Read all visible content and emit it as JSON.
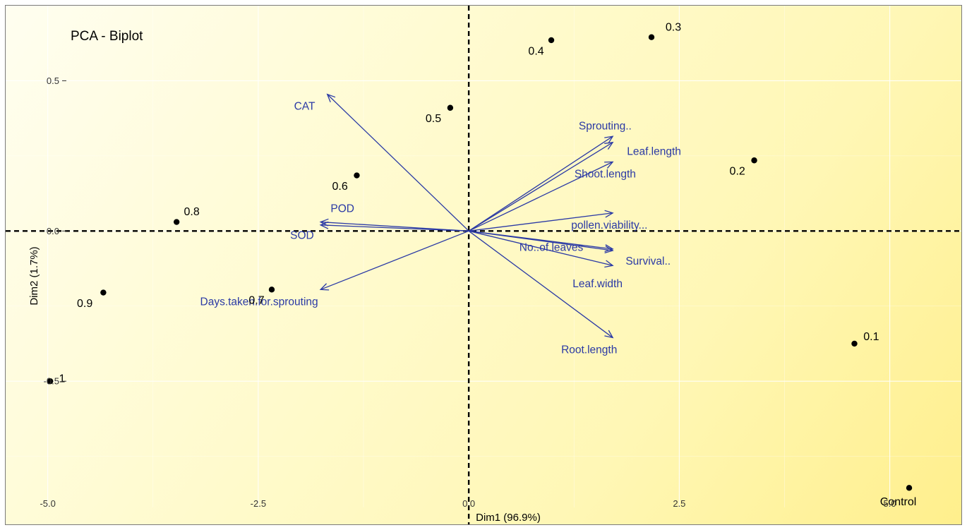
{
  "chart_data": {
    "type": "scatter",
    "title": "PCA - Biplot",
    "xlabel": "Dim1 (96.9%)",
    "ylabel": "Dim2 (1.7%)",
    "xlim": [
      -5.5,
      5.85
    ],
    "ylim": [
      -0.92,
      0.75
    ],
    "x_ticks": [
      {
        "value": -5.0,
        "label": "-5.0"
      },
      {
        "value": -2.5,
        "label": "-2.5"
      },
      {
        "value": 0.0,
        "label": "0.0"
      },
      {
        "value": 2.5,
        "label": "2.5"
      },
      {
        "value": 5.0,
        "label": "5.0"
      }
    ],
    "y_ticks": [
      {
        "value": 0.5,
        "label": "0.5"
      },
      {
        "value": 0.0,
        "label": "0.0"
      },
      {
        "value": -0.5,
        "label": "-0.5"
      }
    ],
    "grid": true,
    "colors": {
      "individuals": "#000000",
      "variables": "#2b3aa5",
      "reference_lines": "#000000"
    },
    "individuals": [
      {
        "label": "0.3",
        "x": 2.17,
        "y": 0.645,
        "label_dx": 0.26,
        "label_dy": 0.035
      },
      {
        "label": "0.4",
        "x": 0.98,
        "y": 0.635,
        "label_dx": -0.18,
        "label_dy": -0.035
      },
      {
        "label": "0.5",
        "x": -0.22,
        "y": 0.41,
        "label_dx": -0.2,
        "label_dy": -0.035
      },
      {
        "label": "0.2",
        "x": 3.39,
        "y": 0.235,
        "label_dx": -0.2,
        "label_dy": -0.035
      },
      {
        "label": "0.6",
        "x": -1.33,
        "y": 0.185,
        "label_dx": -0.2,
        "label_dy": -0.035
      },
      {
        "label": "0.8",
        "x": -3.47,
        "y": 0.03,
        "label_dx": 0.18,
        "label_dy": 0.035
      },
      {
        "label": "0.9",
        "x": -4.34,
        "y": -0.205,
        "label_dx": -0.22,
        "label_dy": -0.035
      },
      {
        "label": "0.7",
        "x": -2.34,
        "y": -0.195,
        "label_dx": -0.18,
        "label_dy": -0.035
      },
      {
        "label": "1",
        "x": -4.97,
        "y": -0.5,
        "label_dx": 0.14,
        "label_dy": 0.01
      },
      {
        "label": "0.1",
        "x": 4.58,
        "y": -0.375,
        "label_dx": 0.2,
        "label_dy": 0.025
      },
      {
        "label": "Control",
        "x": 5.23,
        "y": -0.855,
        "label_dx": -0.13,
        "label_dy": -0.045
      }
    ],
    "variables": [
      {
        "name": "CAT",
        "x": -1.68,
        "y": 0.455,
        "label_x": -1.95,
        "label_y": 0.415
      },
      {
        "name": "Sprouting..",
        "x": 1.71,
        "y": 0.315,
        "label_x": 1.62,
        "label_y": 0.35
      },
      {
        "name": "Leaf.length",
        "x": 1.71,
        "y": 0.295,
        "label_x": 2.2,
        "label_y": 0.265
      },
      {
        "name": "Shoot.length",
        "x": 1.71,
        "y": 0.23,
        "label_x": 1.62,
        "label_y": 0.19
      },
      {
        "name": "pollen.viability...",
        "x": 1.71,
        "y": 0.06,
        "label_x": 1.67,
        "label_y": 0.02
      },
      {
        "name": "No..of.leaves",
        "x": 1.71,
        "y": -0.06,
        "label_x": 0.98,
        "label_y": -0.055
      },
      {
        "name": "Survival..",
        "x": 1.71,
        "y": -0.065,
        "label_x": 2.13,
        "label_y": -0.1
      },
      {
        "name": "Leaf.width",
        "x": 1.71,
        "y": -0.115,
        "label_x": 1.53,
        "label_y": -0.175
      },
      {
        "name": "Root.length",
        "x": 1.71,
        "y": -0.355,
        "label_x": 1.43,
        "label_y": -0.395
      },
      {
        "name": "POD",
        "x": -1.76,
        "y": 0.03,
        "label_x": -1.5,
        "label_y": 0.075
      },
      {
        "name": "SOD",
        "x": -1.76,
        "y": 0.02,
        "label_x": -1.98,
        "label_y": -0.015
      },
      {
        "name": "Days.taken.for.sprouting",
        "x": -1.76,
        "y": -0.195,
        "label_x": -2.49,
        "label_y": -0.235
      }
    ]
  }
}
